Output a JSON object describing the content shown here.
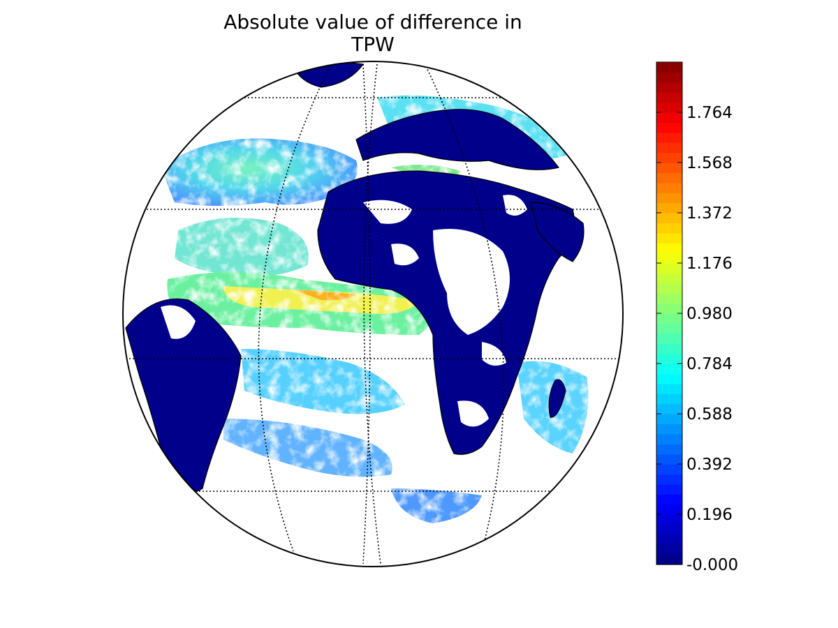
{
  "title_lines": [
    "Absolute value of difference in",
    "TPW"
  ],
  "colorbar": {
    "colormap": "jet",
    "vmin": -0.0,
    "vmax": 1.96,
    "n_levels": 50,
    "ticks": [
      {
        "value": 0.0,
        "label": "-0.000"
      },
      {
        "value": 0.196,
        "label": "0.196"
      },
      {
        "value": 0.392,
        "label": "0.392"
      },
      {
        "value": 0.588,
        "label": "0.588"
      },
      {
        "value": 0.784,
        "label": "0.784"
      },
      {
        "value": 0.98,
        "label": "0.980"
      },
      {
        "value": 1.176,
        "label": "1.176"
      },
      {
        "value": 1.372,
        "label": "1.372"
      },
      {
        "value": 1.568,
        "label": "1.568"
      },
      {
        "value": 1.764,
        "label": "1.764"
      }
    ]
  },
  "map": {
    "projection": "orthographic",
    "center": "Atlantic Ocean / Africa",
    "land_value_color": "#00008b",
    "missing_value_color": "#ffffff",
    "graticule": "dotted",
    "coastlines": true,
    "country_borders": true
  }
}
